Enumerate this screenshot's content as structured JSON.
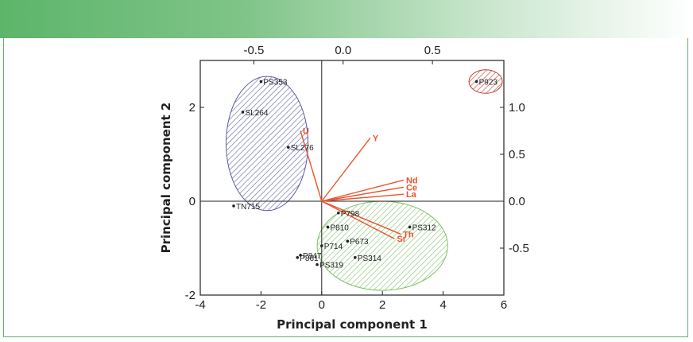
{
  "chart_data": {
    "type": "scatter",
    "title": "",
    "xlabel": "Principal component 1",
    "ylabel": "Principal component 2",
    "xlim": [
      -4,
      6
    ],
    "ylim": [
      -2,
      3
    ],
    "x_ticks": [
      -4,
      -2,
      0,
      2,
      4,
      6
    ],
    "x_tick_labels": [
      "-4",
      "-2",
      "0",
      "2",
      "4",
      "6"
    ],
    "y_ticks": [
      -2,
      0,
      2
    ],
    "y_tick_labels": [
      "-2",
      "0",
      "2"
    ],
    "top_axis": {
      "lim": [
        -0.8,
        0.9
      ],
      "ticks": [
        -0.5,
        0.0,
        0.5
      ],
      "tick_labels": [
        "-0.5",
        "0.0",
        "0.5"
      ]
    },
    "right_axis": {
      "lim": [
        -1.0,
        1.5
      ],
      "ticks": [
        -0.5,
        0.0,
        0.5,
        1.0
      ],
      "tick_labels": [
        "-0.5",
        "0.0",
        "0.5",
        "1.0"
      ]
    },
    "colors": {
      "group1": "#5b5aa8",
      "group2": "#7cbf63",
      "group3": "#c0392b",
      "vectors": "#e8552f",
      "banner": "#5db56a"
    },
    "groups": [
      {
        "center": [
          -1.8,
          1.23
        ],
        "radii": [
          1.35,
          1.43
        ],
        "color": "#5b5aa8"
      },
      {
        "center": [
          2.0,
          -0.95
        ],
        "radii": [
          2.15,
          0.95
        ],
        "color": "#7cbf63"
      },
      {
        "center": [
          5.4,
          2.55
        ],
        "radii": [
          0.55,
          0.25
        ],
        "color": "#c0392b"
      }
    ],
    "points": [
      {
        "label": "PS353",
        "x": -2.0,
        "y": 2.55
      },
      {
        "label": "SL264",
        "x": -2.6,
        "y": 1.9
      },
      {
        "label": "SL276",
        "x": -1.1,
        "y": 1.15
      },
      {
        "label": "TN715",
        "x": -2.9,
        "y": -0.1
      },
      {
        "label": "P923",
        "x": 5.1,
        "y": 2.55
      },
      {
        "label": "P798",
        "x": 0.55,
        "y": -0.25
      },
      {
        "label": "P810",
        "x": 0.2,
        "y": -0.55
      },
      {
        "label": "PS312",
        "x": 2.9,
        "y": -0.55
      },
      {
        "label": "P673",
        "x": 0.85,
        "y": -0.85
      },
      {
        "label": "P714",
        "x": 0.0,
        "y": -0.95
      },
      {
        "label": "PS314",
        "x": 1.1,
        "y": -1.2
      },
      {
        "label": "P847",
        "x": -0.7,
        "y": -1.15
      },
      {
        "label": "P861",
        "x": -0.8,
        "y": -1.2
      },
      {
        "label": "PS319",
        "x": -0.15,
        "y": -1.35
      }
    ],
    "loadings": [
      {
        "label": "U",
        "x": -0.7,
        "y": 1.5
      },
      {
        "label": "Y",
        "x": 1.6,
        "y": 1.35
      },
      {
        "label": "Nd",
        "x": 2.7,
        "y": 0.45
      },
      {
        "label": "Ce",
        "x": 2.7,
        "y": 0.3
      },
      {
        "label": "La",
        "x": 2.7,
        "y": 0.15
      },
      {
        "label": "Th",
        "x": 2.6,
        "y": -0.7
      },
      {
        "label": "Sr",
        "x": 2.4,
        "y": -0.8
      }
    ]
  }
}
